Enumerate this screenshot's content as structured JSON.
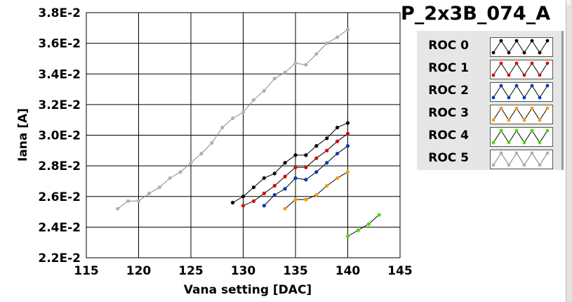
{
  "panel_title": "P_2x3B_074_A",
  "legend": [
    {
      "label": "ROC 0",
      "color": "#000000",
      "marker_color": "#000000"
    },
    {
      "label": "ROC 1",
      "color": "#ff0000",
      "marker_color": "#e00000"
    },
    {
      "label": "ROC 2",
      "color": "#0000ff",
      "marker_color": "#0037b8"
    },
    {
      "label": "ROC 3",
      "color": "#ff9900",
      "marker_color": "#ff9900"
    },
    {
      "label": "ROC 4",
      "color": "#66ff00",
      "marker_color": "#44dd00"
    },
    {
      "label": "ROC 5",
      "color": "#a0a0a0",
      "marker_color": "#b0b0b0"
    }
  ],
  "chart_data": {
    "type": "line",
    "title": "",
    "xlabel": "Vana setting [DAC]",
    "ylabel": "Iana [A]",
    "xlim": [
      115,
      145
    ],
    "ylim": [
      0.022,
      0.038
    ],
    "x_ticks": [
      115,
      120,
      125,
      130,
      135,
      140,
      145
    ],
    "x_tick_labels": [
      "115",
      "120",
      "125",
      "130",
      "135",
      "140",
      "145"
    ],
    "y_ticks": [
      0.022,
      0.024,
      0.026,
      0.028,
      0.03,
      0.032,
      0.034,
      0.036,
      0.038
    ],
    "y_tick_labels": [
      "2.2E-2",
      "2.4E-2",
      "2.6E-2",
      "2.8E-2",
      "3.0E-2",
      "3.2E-2",
      "3.4E-2",
      "3.6E-2",
      "3.8E-2"
    ],
    "grid": true,
    "legend_position": "right",
    "series": [
      {
        "name": "ROC 0",
        "color": "#000000",
        "marker_color": "#000000",
        "x": [
          129,
          130,
          131,
          132,
          133,
          134,
          135,
          136,
          137,
          138,
          139,
          140
        ],
        "y": [
          0.0256,
          0.026,
          0.0266,
          0.0272,
          0.0275,
          0.0282,
          0.0287,
          0.0287,
          0.0293,
          0.0298,
          0.0305,
          0.0308
        ]
      },
      {
        "name": "ROC 1",
        "color": "#ff0000",
        "marker_color": "#e00000",
        "x": [
          130,
          131,
          132,
          133,
          134,
          135,
          136,
          137,
          138,
          139,
          140
        ],
        "y": [
          0.0254,
          0.0257,
          0.0262,
          0.0267,
          0.0273,
          0.0279,
          0.0279,
          0.0285,
          0.029,
          0.0296,
          0.0301
        ]
      },
      {
        "name": "ROC 2",
        "color": "#0000ff",
        "marker_color": "#0037b8",
        "x": [
          132,
          133,
          134,
          135,
          136,
          137,
          138,
          139,
          140
        ],
        "y": [
          0.0254,
          0.0261,
          0.0265,
          0.0272,
          0.0271,
          0.0276,
          0.0282,
          0.0288,
          0.0293
        ]
      },
      {
        "name": "ROC 3",
        "color": "#ff9900",
        "marker_color": "#ff9900",
        "x": [
          134,
          135,
          136,
          137,
          138,
          139,
          140
        ],
        "y": [
          0.0252,
          0.0258,
          0.0258,
          0.0261,
          0.0267,
          0.0272,
          0.0276
        ]
      },
      {
        "name": "ROC 4",
        "color": "#66ff00",
        "marker_color": "#44dd00",
        "x": [
          140,
          141,
          142,
          143
        ],
        "y": [
          0.0234,
          0.0238,
          0.0242,
          0.0248
        ]
      },
      {
        "name": "ROC 5",
        "color": "#a0a0a0",
        "marker_color": "#b0b0b0",
        "x": [
          118,
          119,
          120,
          121,
          122,
          123,
          124,
          125,
          126,
          127,
          128,
          129,
          130,
          131,
          132,
          133,
          134,
          135,
          136,
          137,
          138,
          139,
          140
        ],
        "y": [
          0.0252,
          0.0257,
          0.0257,
          0.0262,
          0.0266,
          0.0272,
          0.0276,
          0.0282,
          0.0288,
          0.0295,
          0.0305,
          0.0311,
          0.0315,
          0.0323,
          0.0329,
          0.0337,
          0.0341,
          0.0347,
          0.0346,
          0.0353,
          0.036,
          0.0364,
          0.0369
        ]
      }
    ]
  }
}
